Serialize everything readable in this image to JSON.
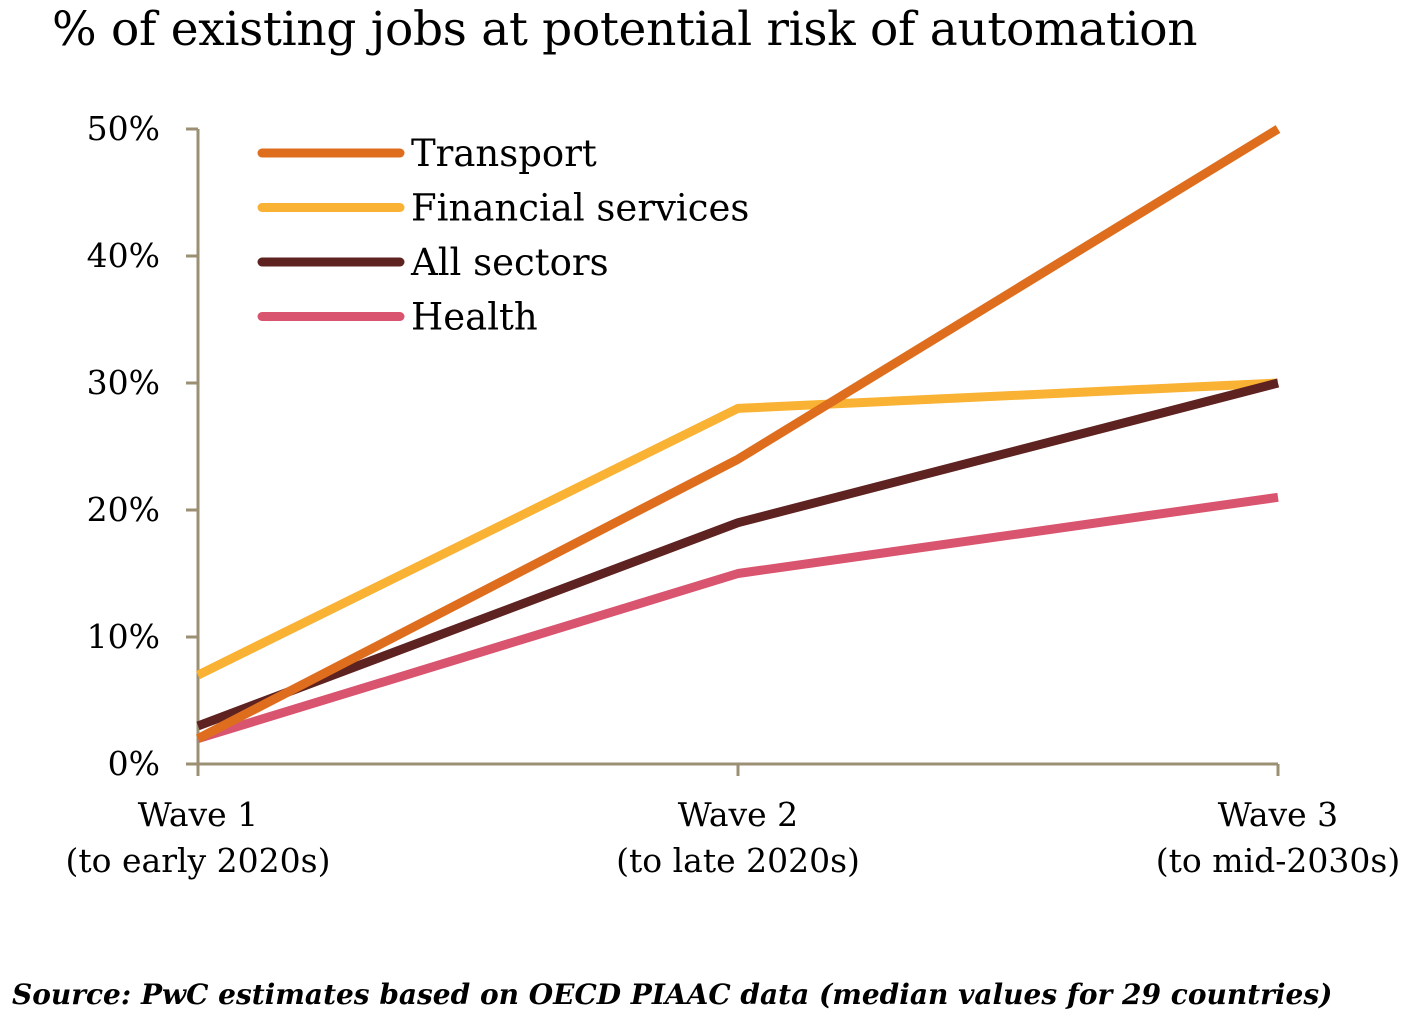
{
  "chart_data": {
    "type": "line",
    "title": "% of existing jobs at potential risk of automation",
    "categories": [
      [
        "Wave 1",
        "(to early 2020s)"
      ],
      [
        "Wave 2",
        "(to late 2020s)"
      ],
      [
        "Wave 3",
        "(to mid-2030s)"
      ]
    ],
    "ylim": [
      0,
      50
    ],
    "yticks": [
      0,
      10,
      20,
      30,
      40,
      50
    ],
    "ytick_labels": [
      "0%",
      "10%",
      "20%",
      "30%",
      "40%",
      "50%"
    ],
    "legend_position": "top-left",
    "series": [
      {
        "name": "Transport",
        "color": "#DE6E1E",
        "values": [
          2,
          24,
          50
        ]
      },
      {
        "name": "Financial services",
        "color": "#F9B233",
        "values": [
          7,
          28,
          30
        ]
      },
      {
        "name": "All sectors",
        "color": "#5E2320",
        "values": [
          3,
          19,
          30
        ]
      },
      {
        "name": "Health",
        "color": "#D9546E",
        "values": [
          2,
          15,
          21
        ]
      }
    ],
    "axis_color": "#9B8F74"
  },
  "source": "Source: PwC estimates based on OECD PIAAC data (median values for 29 countries)"
}
